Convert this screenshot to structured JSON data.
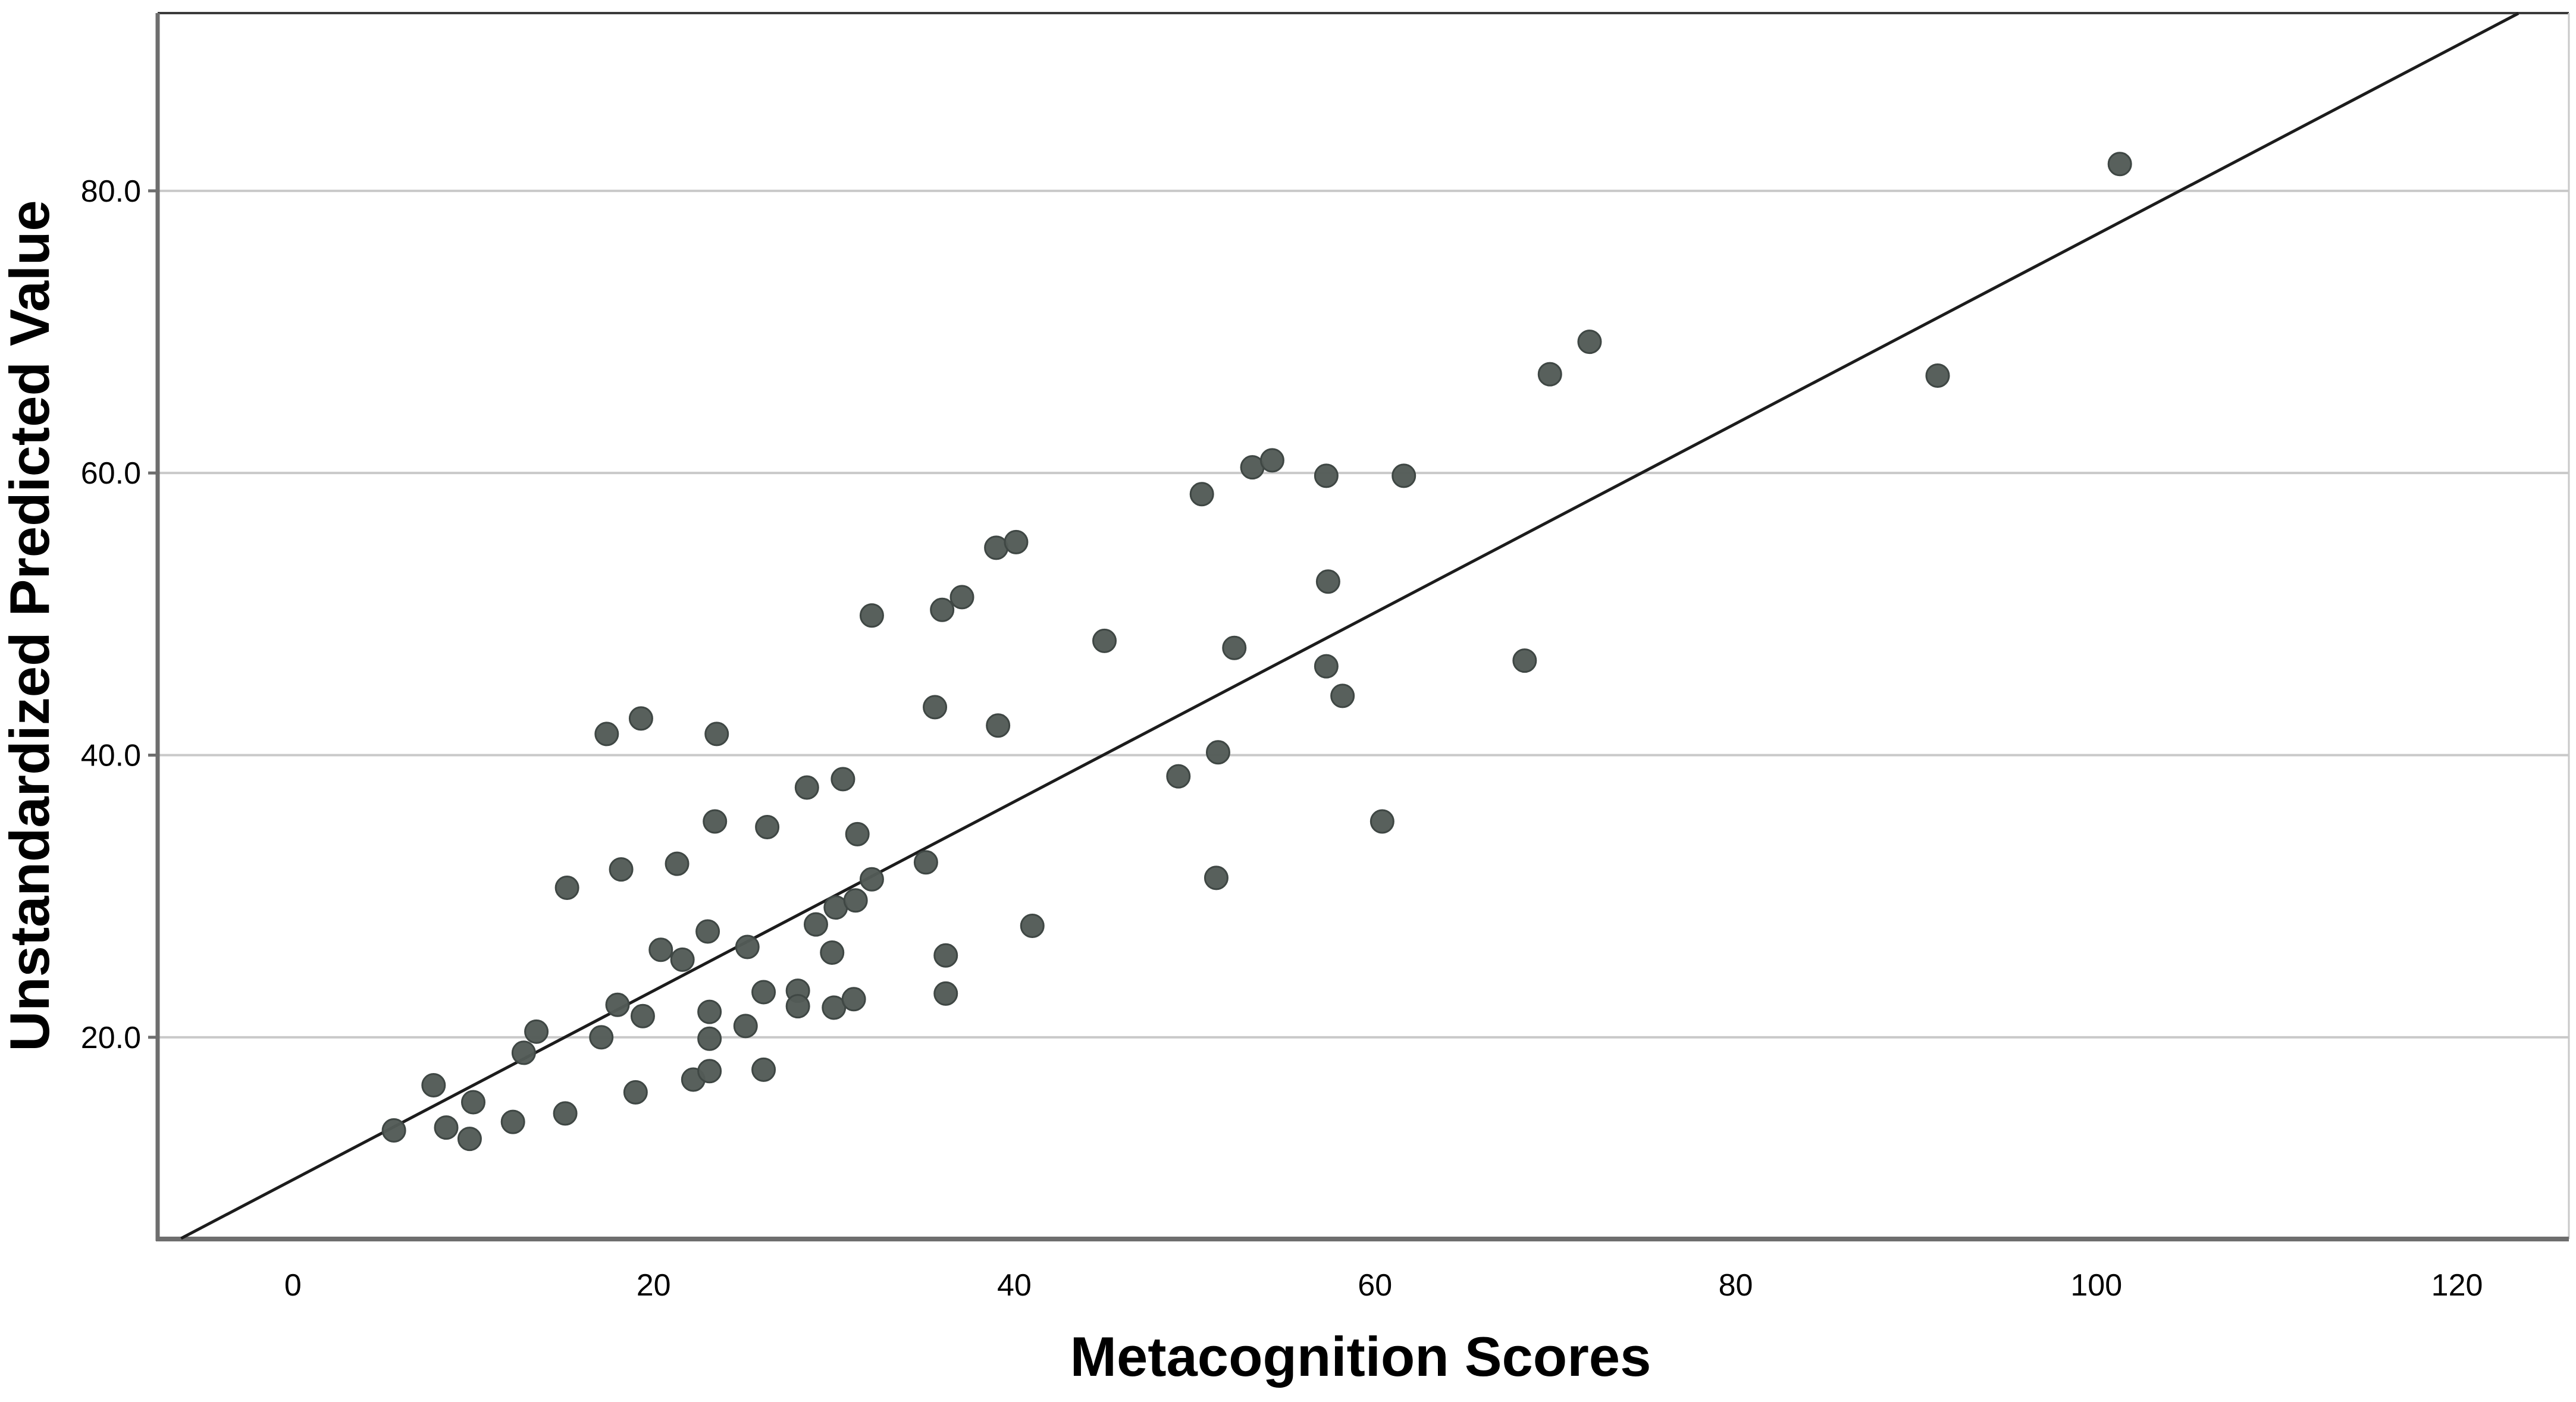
{
  "chart_data": {
    "type": "scatter",
    "title": "",
    "xlabel": "Metacognition Scores",
    "ylabel": "Unstandardized Predicted Value",
    "x_ticks": [
      0,
      20,
      40,
      60,
      80,
      100,
      120
    ],
    "y_ticks": [
      {
        "value": 20,
        "label": "20.0"
      },
      {
        "value": 40,
        "label": "40.0"
      },
      {
        "value": 60,
        "label": "60.0"
      },
      {
        "value": 80,
        "label": "80.0"
      }
    ],
    "x_range": [
      -7.5,
      126.2
    ],
    "y_range": [
      5.7,
      92.6
    ],
    "grid": "horizontal-gridlines-only",
    "legend": "none",
    "fit_line": {
      "slope": 0.67,
      "intercept": 9.9,
      "x_start": -6.2,
      "x_end": 123.4
    },
    "points": [
      [
        5.6,
        13.4
      ],
      [
        7.8,
        16.6
      ],
      [
        8.5,
        13.6
      ],
      [
        9.8,
        12.8
      ],
      [
        10.0,
        15.4
      ],
      [
        12.2,
        14.0
      ],
      [
        12.8,
        18.9
      ],
      [
        13.5,
        20.4
      ],
      [
        15.1,
        14.6
      ],
      [
        19.0,
        16.1
      ],
      [
        18.0,
        22.3
      ],
      [
        19.4,
        21.5
      ],
      [
        17.1,
        20.0
      ],
      [
        22.2,
        17.0
      ],
      [
        23.1,
        17.6
      ],
      [
        26.1,
        17.7
      ],
      [
        23.1,
        21.8
      ],
      [
        23.1,
        19.9
      ],
      [
        25.1,
        20.8
      ],
      [
        25.2,
        26.4
      ],
      [
        20.4,
        26.2
      ],
      [
        21.6,
        25.5
      ],
      [
        23.0,
        27.5
      ],
      [
        26.1,
        23.2
      ],
      [
        28.0,
        23.3
      ],
      [
        28.0,
        22.2
      ],
      [
        30.0,
        22.1
      ],
      [
        31.1,
        22.7
      ],
      [
        36.2,
        25.8
      ],
      [
        36.2,
        23.1
      ],
      [
        29.9,
        26.0
      ],
      [
        29.0,
        28.0
      ],
      [
        30.1,
        29.2
      ],
      [
        31.2,
        29.7
      ],
      [
        32.1,
        31.2
      ],
      [
        26.3,
        34.9
      ],
      [
        31.3,
        34.4
      ],
      [
        35.1,
        32.4
      ],
      [
        23.4,
        35.3
      ],
      [
        21.3,
        32.3
      ],
      [
        18.2,
        31.9
      ],
      [
        15.2,
        30.6
      ],
      [
        28.5,
        37.7
      ],
      [
        30.5,
        38.3
      ],
      [
        17.4,
        41.5
      ],
      [
        19.3,
        42.6
      ],
      [
        23.5,
        41.5
      ],
      [
        35.6,
        43.4
      ],
      [
        39.1,
        42.1
      ],
      [
        41.0,
        27.9
      ],
      [
        32.1,
        49.9
      ],
      [
        36.0,
        50.3
      ],
      [
        37.1,
        51.2
      ],
      [
        39.0,
        54.7
      ],
      [
        40.1,
        55.1
      ],
      [
        45.0,
        48.1
      ],
      [
        49.1,
        38.5
      ],
      [
        51.3,
        40.2
      ],
      [
        51.2,
        31.3
      ],
      [
        52.2,
        47.6
      ],
      [
        57.3,
        46.3
      ],
      [
        58.2,
        44.2
      ],
      [
        60.4,
        35.3
      ],
      [
        68.3,
        46.7
      ],
      [
        57.4,
        52.3
      ],
      [
        50.4,
        58.5
      ],
      [
        53.2,
        60.4
      ],
      [
        54.3,
        60.9
      ],
      [
        57.3,
        59.8
      ],
      [
        61.6,
        59.8
      ],
      [
        69.7,
        67.0
      ],
      [
        71.9,
        69.3
      ],
      [
        91.2,
        66.9
      ],
      [
        101.3,
        81.9
      ]
    ],
    "colors": {
      "point_fill": "#535b57",
      "point_stroke": "#3f4744",
      "grid": "#c9c9c9",
      "axis": "#6e6e6e",
      "frame": "#3a3a3a",
      "line": "#1c1c1c",
      "text": "#000000",
      "background": "#ffffff"
    }
  }
}
